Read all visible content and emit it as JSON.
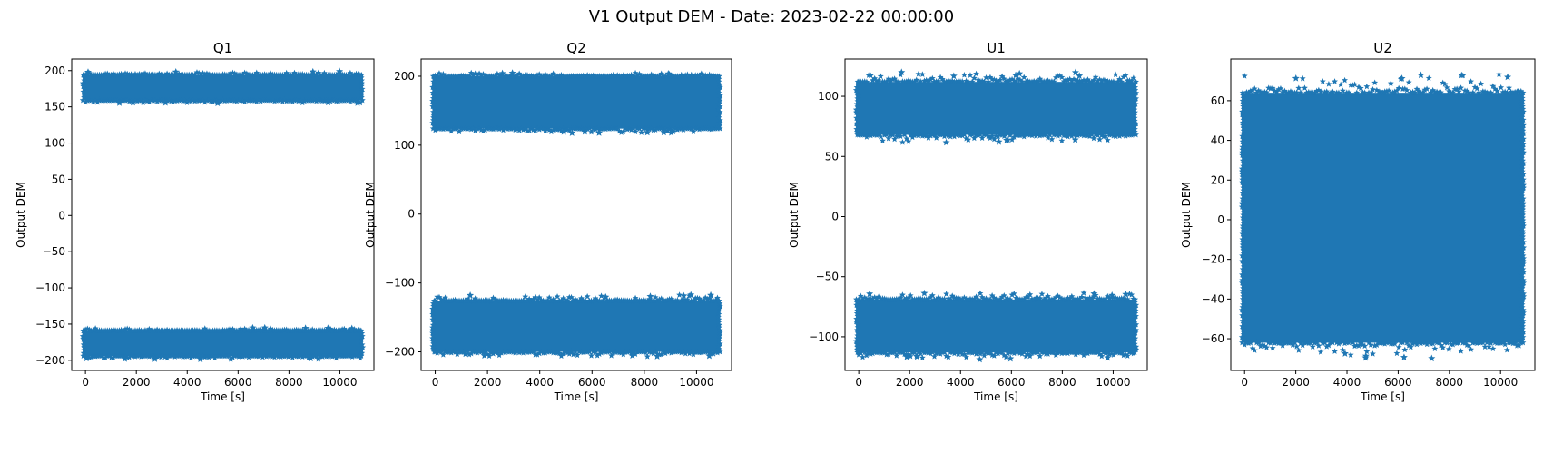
{
  "figure": {
    "suptitle": "V1 Output DEM - Date: 2023-02-22 00:00:00"
  },
  "colors": {
    "series": "#1f77b4",
    "axes": "#000000",
    "background": "#ffffff"
  },
  "chart_data": [
    {
      "type": "scatter",
      "title": "Q1",
      "xlabel": "Time [s]",
      "ylabel": "Output DEM",
      "marker": "star",
      "grid": false,
      "xlim": [
        -540,
        11340
      ],
      "ylim": [
        -214,
        216
      ],
      "xticks": [
        0,
        2000,
        4000,
        6000,
        8000,
        10000
      ],
      "yticks": [
        -200,
        -150,
        -100,
        -50,
        0,
        50,
        100,
        150,
        200
      ],
      "x_range": [
        0,
        10800
      ],
      "bands": [
        {
          "y_min": 159,
          "y_max": 194,
          "y_outer_min": 155,
          "y_outer_max": 199,
          "core_min": 162,
          "core_max": 191
        },
        {
          "y_min": -194,
          "y_max": -159,
          "y_outer_min": -199,
          "y_outer_max": -155,
          "core_min": -191,
          "core_max": -162
        }
      ]
    },
    {
      "type": "scatter",
      "title": "Q2",
      "xlabel": "Time [s]",
      "ylabel": "Output DEM",
      "marker": "star",
      "grid": false,
      "xlim": [
        -540,
        11340
      ],
      "ylim": [
        -227,
        225
      ],
      "xticks": [
        0,
        2000,
        4000,
        6000,
        8000,
        10000
      ],
      "yticks": [
        -200,
        -100,
        0,
        100,
        200
      ],
      "x_range": [
        0,
        10800
      ],
      "bands": [
        {
          "y_min": 124,
          "y_max": 200,
          "y_outer_min": 117,
          "y_outer_max": 206,
          "core_min": 128,
          "core_max": 197
        },
        {
          "y_min": -200,
          "y_max": -126,
          "y_outer_min": -208,
          "y_outer_max": -117,
          "core_min": -197,
          "core_max": -130
        }
      ]
    },
    {
      "type": "scatter",
      "title": "U1",
      "xlabel": "Time [s]",
      "ylabel": "Output DEM",
      "marker": "star",
      "grid": false,
      "xlim": [
        -540,
        11340
      ],
      "ylim": [
        -128,
        131
      ],
      "xticks": [
        0,
        2000,
        4000,
        6000,
        8000,
        10000
      ],
      "yticks": [
        -100,
        -50,
        0,
        50,
        100
      ],
      "x_range": [
        0,
        10800
      ],
      "bands": [
        {
          "y_min": 68,
          "y_max": 112,
          "y_outer_min": 61,
          "y_outer_max": 120,
          "core_min": 71,
          "core_max": 109
        },
        {
          "y_min": -113,
          "y_max": -69,
          "y_outer_min": -119,
          "y_outer_max": -63,
          "core_min": -110,
          "core_max": -72
        }
      ]
    },
    {
      "type": "scatter",
      "title": "U2",
      "xlabel": "Time [s]",
      "ylabel": "Output DEM",
      "marker": "star",
      "grid": false,
      "xlim": [
        -540,
        11340
      ],
      "ylim": [
        -76,
        81
      ],
      "xticks": [
        0,
        2000,
        4000,
        6000,
        8000,
        10000
      ],
      "yticks": [
        -60,
        -40,
        -20,
        0,
        20,
        40,
        60
      ],
      "x_range": [
        0,
        10800
      ],
      "bands": [
        {
          "y_min": -62,
          "y_max": 64,
          "y_outer_min": -70,
          "y_outer_max": 74,
          "core_min": -59,
          "core_max": 61
        }
      ]
    }
  ]
}
